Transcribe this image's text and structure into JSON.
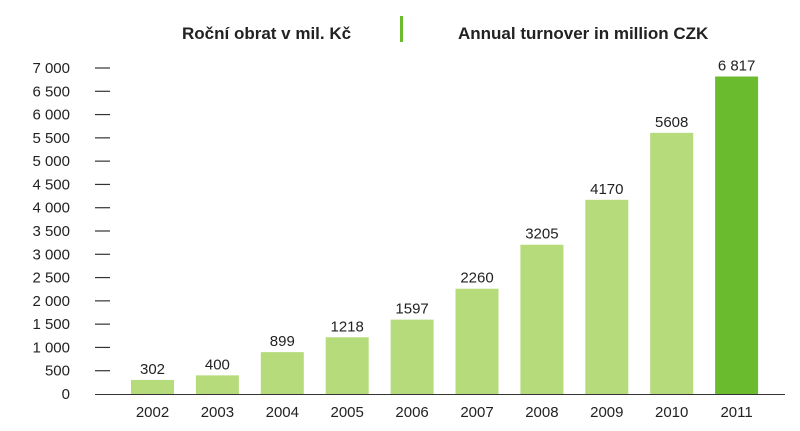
{
  "chart_data": {
    "type": "bar",
    "title": "Roční obrat v mil. Kč",
    "subtitle": "Annual turnover in million CZK",
    "xlabel": "",
    "ylabel": "",
    "categories": [
      "2002",
      "2003",
      "2004",
      "2005",
      "2006",
      "2007",
      "2008",
      "2009",
      "2010",
      "2011"
    ],
    "values": [
      302,
      400,
      899,
      1218,
      1597,
      2260,
      3205,
      4170,
      5608,
      6817
    ],
    "data_labels": [
      "302",
      "400",
      "899",
      "1218",
      "1597",
      "2260",
      "3205",
      "4170",
      "5608",
      "6 817"
    ],
    "ylim": [
      0,
      7000
    ],
    "yticks": [
      0,
      500,
      1000,
      1500,
      2000,
      2500,
      3000,
      3500,
      4000,
      4500,
      5000,
      5500,
      6000,
      6500,
      7000
    ],
    "ytick_labels": [
      "0",
      "500",
      "1 000",
      "1 500",
      "2 000",
      "2 500",
      "3 000",
      "3 500",
      "4 000",
      "4 500",
      "5 000",
      "5 500",
      "6 000",
      "6 500",
      "7 000"
    ],
    "grid": false,
    "legend": "none",
    "colors": {
      "bar": "#b5db7a",
      "highlight_bar": "#6bbb2f",
      "separator": "#6bbb2f",
      "axis": "#333333"
    },
    "highlight_index": 9
  }
}
